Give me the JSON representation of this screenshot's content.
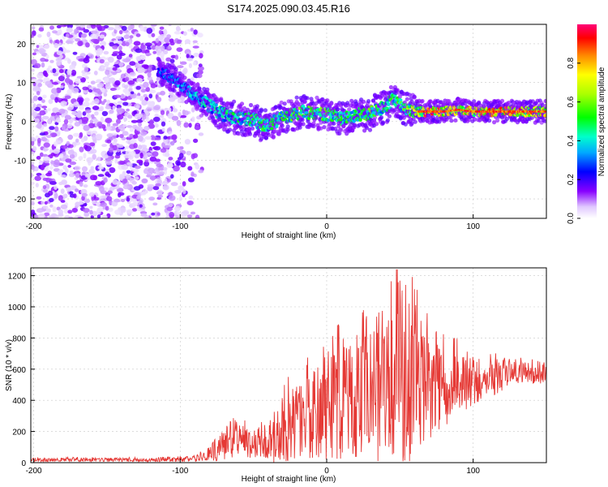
{
  "title": "S174.2025.090.03.45.R16",
  "colors": {
    "snr_line": "#e53935",
    "frame": "#000000",
    "grid": "#c8c8c8",
    "background": "#ffffff"
  },
  "chart_data": [
    {
      "type": "heatmap",
      "name": "spectrogram",
      "xlabel": "Height of straight line (km)",
      "ylabel": "Frequency (Hz)",
      "xlim": [
        -202,
        150
      ],
      "ylim": [
        -25,
        25
      ],
      "xticks": [
        -200,
        -100,
        0,
        100
      ],
      "yticks": [
        -20,
        -10,
        0,
        10,
        20
      ],
      "colorbar": {
        "label": "Normalized spectral amplitude",
        "range": [
          0,
          1
        ],
        "ticks": [
          0.0,
          0.2,
          0.4,
          0.6,
          0.8
        ],
        "tick_labels": [
          "0.0",
          "0.2",
          "0.4",
          "0.6",
          "0.8"
        ],
        "colormap": "rainbow"
      },
      "noise_region_x": [
        -202,
        -85
      ],
      "ridge": {
        "x": [
          -115,
          -105,
          -95,
          -88,
          -80,
          -72,
          -64,
          -56,
          -50,
          -44,
          -38,
          -32,
          -26,
          -20,
          -14,
          -8,
          -2,
          4,
          10,
          16,
          22,
          28,
          34,
          40,
          46,
          50,
          56,
          62,
          70,
          80,
          90,
          100,
          110,
          120,
          130,
          140,
          150
        ],
        "y": [
          13,
          11,
          8,
          6,
          4,
          2,
          1,
          0.5,
          0.5,
          -1,
          -0.5,
          0.5,
          1.5,
          2,
          2.5,
          2,
          2,
          1.5,
          0.5,
          1,
          2,
          1.5,
          3,
          3.5,
          6,
          4,
          3,
          2.5,
          2.5,
          2.5,
          3,
          2.5,
          2.5,
          2.5,
          2.5,
          2.5,
          2.5
        ],
        "amplitude": [
          0.3,
          0.3,
          0.35,
          0.4,
          0.4,
          0.45,
          0.45,
          0.45,
          0.5,
          0.5,
          0.5,
          0.5,
          0.5,
          0.55,
          0.55,
          0.55,
          0.55,
          0.5,
          0.5,
          0.5,
          0.55,
          0.55,
          0.5,
          0.5,
          0.5,
          0.55,
          0.6,
          0.7,
          0.95,
          0.75,
          0.7,
          0.8,
          0.9,
          0.9,
          0.85,
          0.8,
          0.8
        ]
      }
    },
    {
      "type": "line",
      "name": "snr",
      "xlabel": "Height of straight line (km)",
      "ylabel": "SNR (10 * v/v)",
      "xlim": [
        -202,
        150
      ],
      "ylim": [
        0,
        1250
      ],
      "xticks": [
        -200,
        -100,
        0,
        100
      ],
      "yticks": [
        0,
        200,
        400,
        600,
        800,
        1000,
        1200
      ],
      "series": [
        {
          "name": "SNR",
          "color": "#e53935",
          "envelope_x": [
            -202,
            -130,
            -100,
            -90,
            -82,
            -75,
            -70,
            -65,
            -60,
            -55,
            -50,
            -45,
            -40,
            -35,
            -30,
            -25,
            -20,
            -15,
            -10,
            -5,
            0,
            5,
            10,
            15,
            20,
            25,
            30,
            35,
            40,
            45,
            48,
            50,
            55,
            58,
            62,
            70,
            80,
            90,
            100,
            110,
            120,
            130,
            140,
            150
          ],
          "envelope_mean": [
            18,
            18,
            20,
            25,
            40,
            90,
            110,
            150,
            140,
            120,
            110,
            130,
            150,
            170,
            200,
            230,
            260,
            280,
            300,
            320,
            340,
            360,
            380,
            400,
            430,
            450,
            470,
            480,
            500,
            520,
            540,
            540,
            520,
            500,
            480,
            470,
            470,
            500,
            520,
            540,
            560,
            570,
            570,
            570
          ],
          "envelope_amp": [
            12,
            12,
            15,
            20,
            35,
            90,
            100,
            160,
            120,
            100,
            90,
            110,
            130,
            200,
            220,
            230,
            250,
            260,
            280,
            300,
            320,
            340,
            360,
            380,
            420,
            430,
            460,
            480,
            500,
            560,
            600,
            650,
            600,
            550,
            420,
            320,
            240,
            200,
            160,
            130,
            100,
            80,
            70,
            60
          ]
        }
      ]
    }
  ]
}
